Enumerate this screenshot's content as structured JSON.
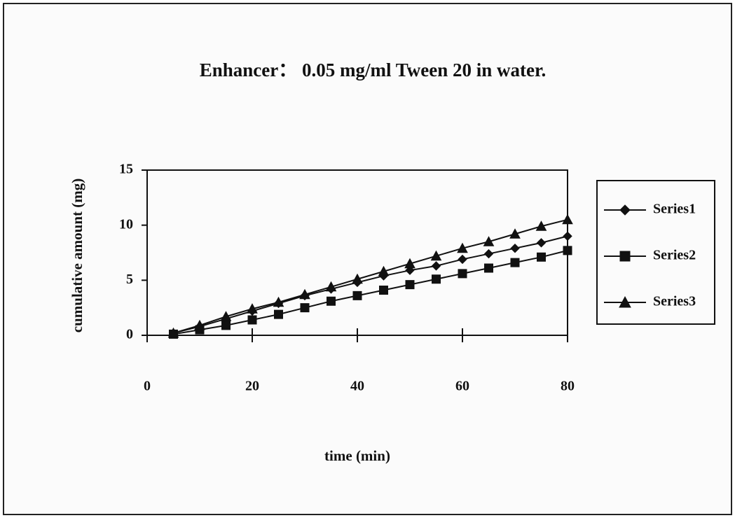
{
  "chart_data": {
    "type": "line",
    "title": "Enhancer： 0.05 mg/ml Tween 20 in water.",
    "xlabel": "time (min)",
    "ylabel": "cumulative amount (mg)",
    "x": [
      5,
      10,
      15,
      20,
      25,
      30,
      35,
      40,
      45,
      50,
      55,
      60,
      65,
      70,
      75,
      80
    ],
    "series": [
      {
        "name": "Series1",
        "color": "#111111",
        "marker": "diamond",
        "values": [
          0.2,
          0.8,
          1.5,
          2.2,
          2.9,
          3.6,
          4.2,
          4.8,
          5.4,
          5.9,
          6.3,
          6.9,
          7.4,
          7.9,
          8.4,
          9.0
        ]
      },
      {
        "name": "Series2",
        "color": "#111111",
        "marker": "square",
        "values": [
          0.1,
          0.5,
          0.9,
          1.4,
          1.9,
          2.5,
          3.1,
          3.6,
          4.1,
          4.6,
          5.1,
          5.6,
          6.1,
          6.6,
          7.1,
          7.7
        ]
      },
      {
        "name": "Series3",
        "color": "#111111",
        "marker": "triangle",
        "values": [
          0.2,
          0.9,
          1.7,
          2.4,
          3.0,
          3.7,
          4.4,
          5.1,
          5.8,
          6.5,
          7.2,
          7.9,
          8.5,
          9.2,
          9.9,
          10.5
        ]
      }
    ],
    "xlim": [
      0,
      80
    ],
    "xticks": [
      0,
      20,
      40,
      60,
      80
    ],
    "ylim": [
      0,
      15
    ],
    "yticks": [
      0,
      5,
      10,
      15
    ],
    "legend": "right"
  }
}
